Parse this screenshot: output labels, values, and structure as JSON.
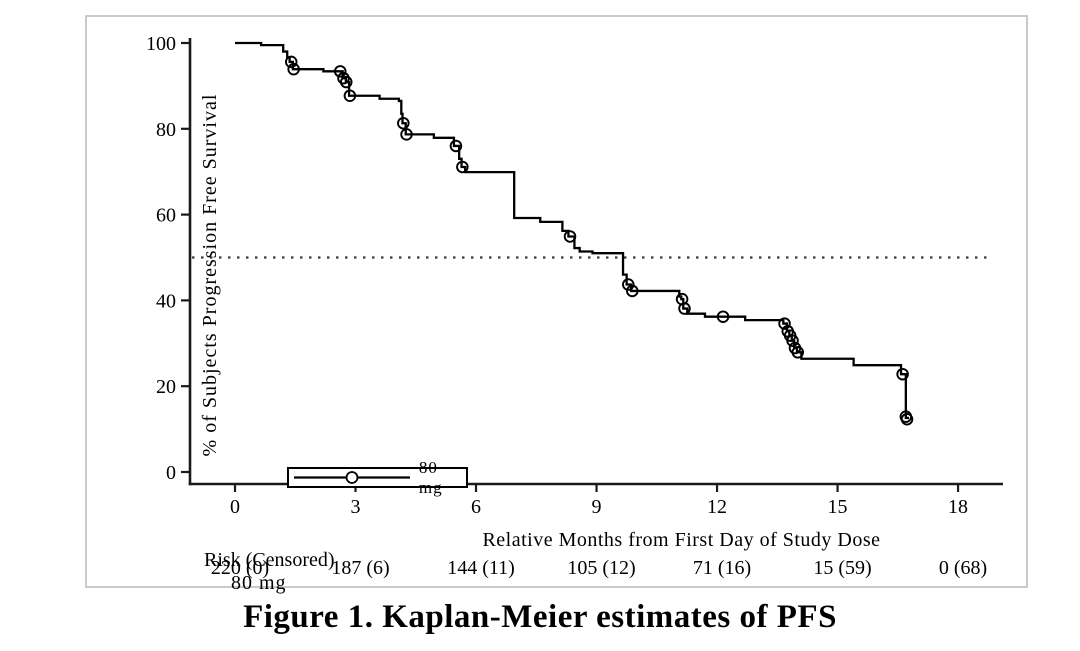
{
  "figure": {
    "title": "Figure 1. Kaplan-Meier estimates of PFS"
  },
  "colors": {
    "curve": "#000000",
    "axis": "#1a1a1a",
    "reference_line": "#3a3a3a",
    "frame_border": "#c9c9c9",
    "background": "#ffffff"
  },
  "chart_data": {
    "type": "line",
    "subtype": "kaplan-meier-step-curve",
    "title": "",
    "xlabel": "Relative Months from First Day of Study Dose",
    "ylabel": "% of Subjects Progression Free Survival",
    "xlim": [
      0,
      18
    ],
    "ylim": [
      0,
      100
    ],
    "xticks": [
      0,
      3,
      6,
      9,
      12,
      15,
      18
    ],
    "yticks": [
      0,
      20,
      40,
      60,
      80,
      100
    ],
    "grid": false,
    "reference_line_y": 50,
    "legend": {
      "position": "bottom-left",
      "entries": [
        {
          "label": "80 mg",
          "marker": "open-circle-on-line"
        }
      ]
    },
    "series": [
      {
        "name": "80 mg",
        "end_time": 16.78,
        "steps": [
          [
            0,
            100
          ],
          [
            0.65,
            99.5
          ],
          [
            1.2,
            98.0
          ],
          [
            1.3,
            96.6
          ],
          [
            1.36,
            95.6
          ],
          [
            1.44,
            93.9
          ],
          [
            2.2,
            93.4
          ],
          [
            2.68,
            91.8
          ],
          [
            2.76,
            90.9
          ],
          [
            2.84,
            87.7
          ],
          [
            3.6,
            87.0
          ],
          [
            4.08,
            86.5
          ],
          [
            4.14,
            83.5
          ],
          [
            4.17,
            81.3
          ],
          [
            4.25,
            78.7
          ],
          [
            4.95,
            77.9
          ],
          [
            5.45,
            76.0
          ],
          [
            5.58,
            73.0
          ],
          [
            5.64,
            71.1
          ],
          [
            5.73,
            69.9
          ],
          [
            6.95,
            59.2
          ],
          [
            7.6,
            58.3
          ],
          [
            8.15,
            56.2
          ],
          [
            8.3,
            54.9
          ],
          [
            8.45,
            52.2
          ],
          [
            8.58,
            51.4
          ],
          [
            8.9,
            51.0
          ],
          [
            9.66,
            46.0
          ],
          [
            9.75,
            43.7
          ],
          [
            9.86,
            42.2
          ],
          [
            11.06,
            40.9
          ],
          [
            11.11,
            40.3
          ],
          [
            11.16,
            38.1
          ],
          [
            11.26,
            36.9
          ],
          [
            11.7,
            36.2
          ],
          [
            12.7,
            35.4
          ],
          [
            13.65,
            34.6
          ],
          [
            13.74,
            32.8
          ],
          [
            13.8,
            31.8
          ],
          [
            13.86,
            30.6
          ],
          [
            13.92,
            28.9
          ],
          [
            13.99,
            27.9
          ],
          [
            14.1,
            26.4
          ],
          [
            15.4,
            24.9
          ],
          [
            16.58,
            22.8
          ],
          [
            16.7,
            12.6
          ]
        ],
        "censor_marks": [
          [
            1.4,
            95.6
          ],
          [
            1.46,
            93.9
          ],
          [
            2.62,
            93.4
          ],
          [
            2.7,
            91.8
          ],
          [
            2.77,
            90.9
          ],
          [
            2.86,
            87.7
          ],
          [
            4.19,
            81.3
          ],
          [
            4.27,
            78.7
          ],
          [
            5.5,
            76.0
          ],
          [
            5.66,
            71.1
          ],
          [
            8.34,
            54.9
          ],
          [
            9.79,
            43.7
          ],
          [
            9.89,
            42.2
          ],
          [
            11.13,
            40.3
          ],
          [
            11.19,
            38.1
          ],
          [
            12.15,
            36.2
          ],
          [
            13.68,
            34.6
          ],
          [
            13.76,
            32.8
          ],
          [
            13.82,
            31.8
          ],
          [
            13.88,
            30.6
          ],
          [
            13.94,
            28.9
          ],
          [
            14.01,
            27.9
          ],
          [
            16.62,
            22.8
          ],
          [
            16.7,
            12.9
          ],
          [
            16.73,
            12.3
          ]
        ]
      }
    ],
    "risk_table": {
      "header": "Risk (Censored)",
      "rows": [
        {
          "label": "80 mg",
          "values_at_ticks": [
            "220 (0)",
            "187 (6)",
            "144 (11)",
            "105 (12)",
            "71 (16)",
            "15 (59)",
            "0 (68)"
          ]
        }
      ]
    }
  }
}
